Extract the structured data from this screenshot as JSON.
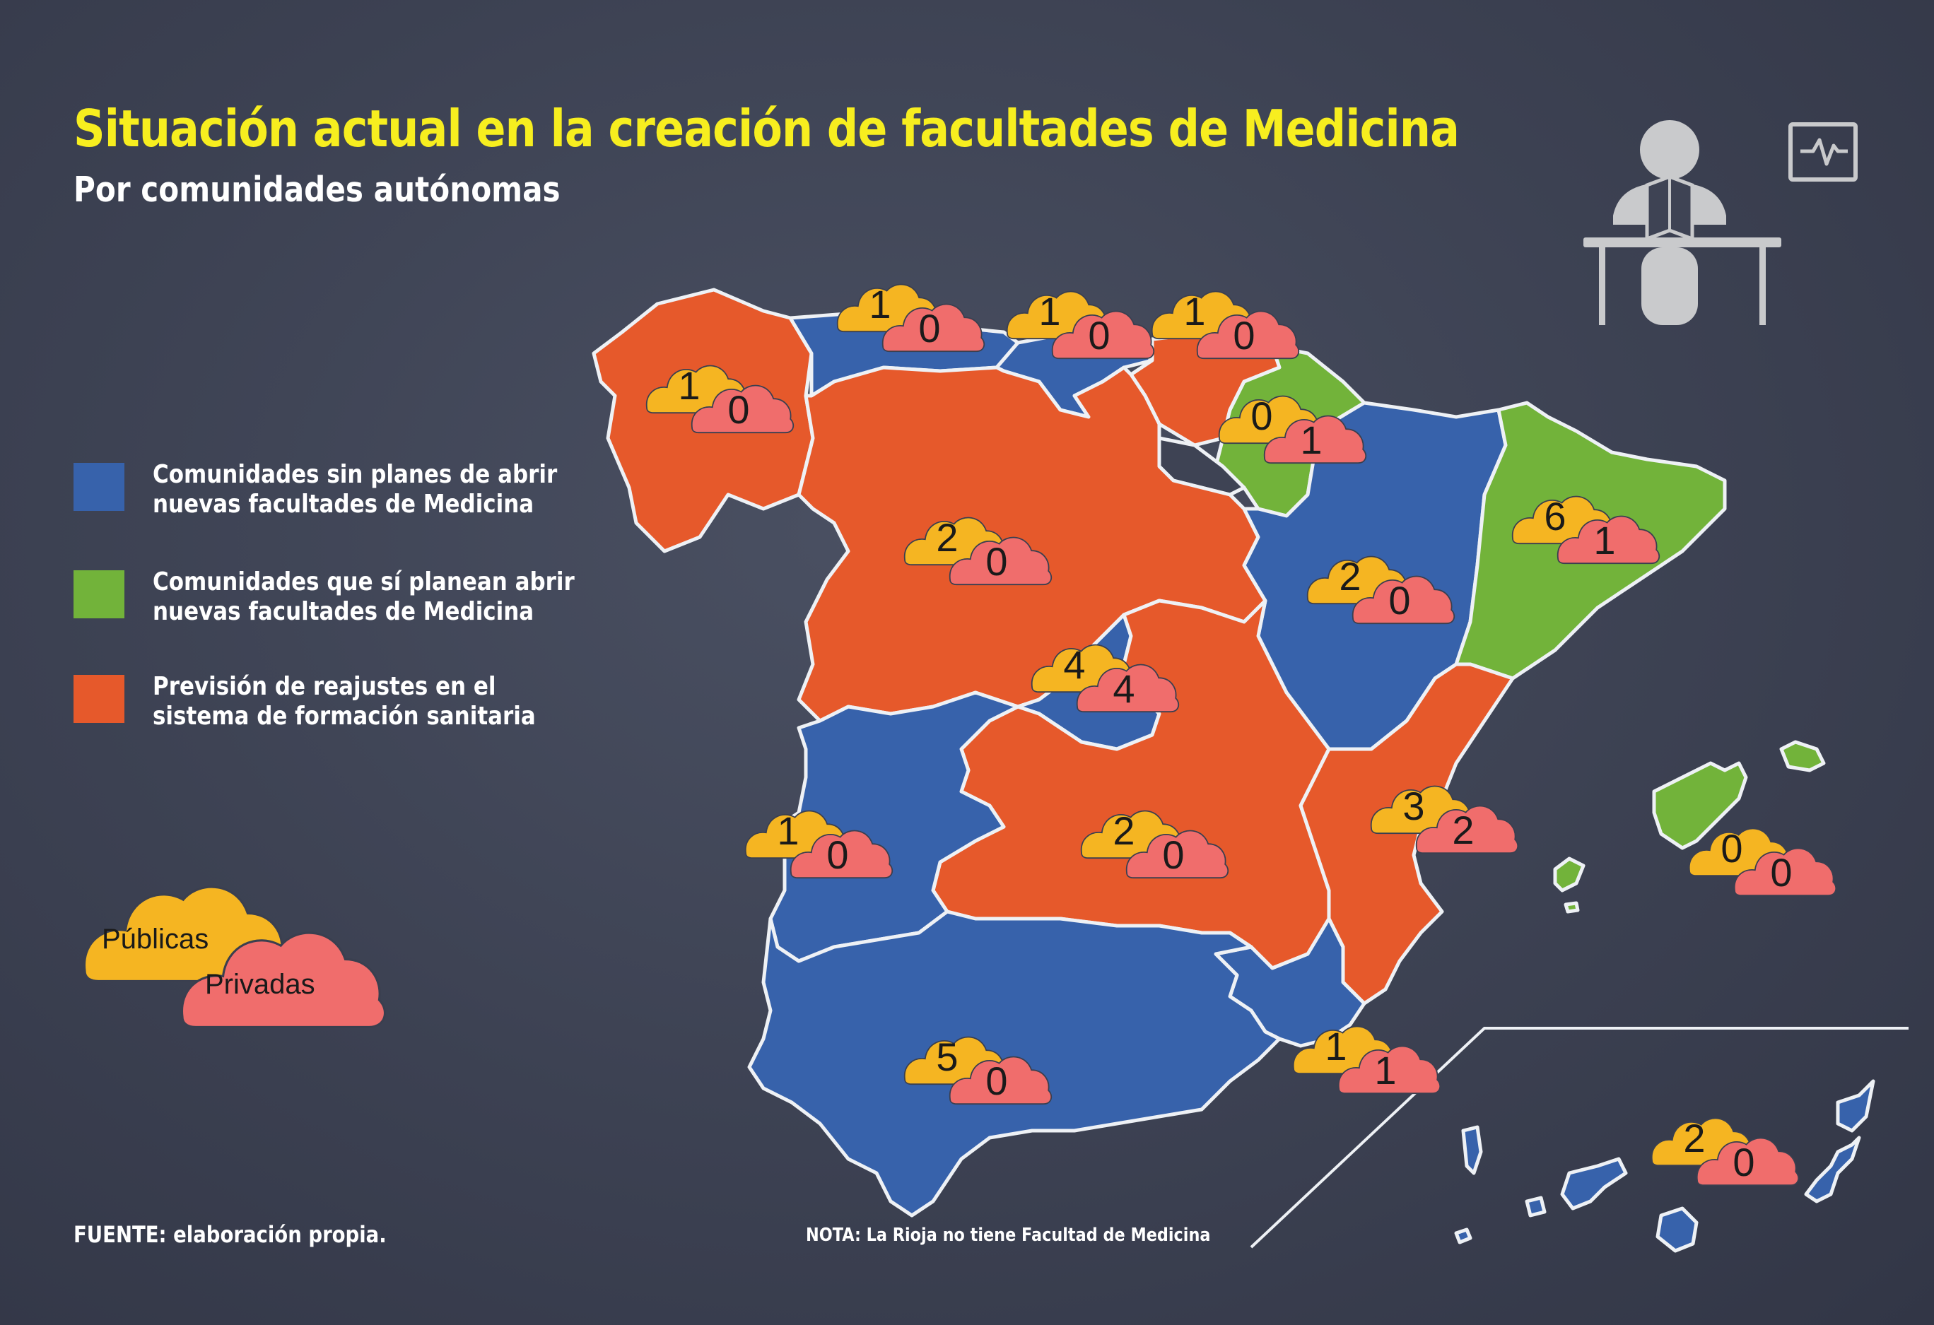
{
  "title": "Situación actual en la creación de facultades de Medicina",
  "subtitle": "Por comunidades autónomas",
  "colors": {
    "blue": "#3762ab",
    "green": "#72b33a",
    "orange": "#e6592b",
    "cloud_public": "#f5b522",
    "cloud_private": "#f06d6c",
    "title": "#f7ee1f"
  },
  "legend": [
    {
      "color": "#3762ab",
      "line1": "Comunidades sin planes de abrir",
      "line2": "nuevas facultades de Medicina"
    },
    {
      "color": "#72b33a",
      "line1": "Comunidades que sí planean abrir",
      "line2": "nuevas facultades de Medicina"
    },
    {
      "color": "#e6592b",
      "line1": "Previsión de reajustes en el",
      "line2": "sistema de formación sanitaria"
    }
  ],
  "key": {
    "public": "Públicas",
    "private": "Privadas"
  },
  "regions": [
    {
      "name": "Galicia",
      "color": "orange",
      "public": "1",
      "private": "0"
    },
    {
      "name": "Asturias",
      "color": "blue",
      "public": "1",
      "private": "0"
    },
    {
      "name": "Cantabria",
      "color": "blue",
      "public": "1",
      "private": "0"
    },
    {
      "name": "País Vasco",
      "color": "orange",
      "public": "1",
      "private": "0"
    },
    {
      "name": "Navarra",
      "color": "green",
      "public": "0",
      "private": "1"
    },
    {
      "name": "Cataluña",
      "color": "green",
      "public": "6",
      "private": "1"
    },
    {
      "name": "Aragón",
      "color": "blue",
      "public": "2",
      "private": "0"
    },
    {
      "name": "Castilla y León",
      "color": "orange",
      "public": "2",
      "private": "0"
    },
    {
      "name": "Madrid",
      "color": "blue",
      "public": "4",
      "private": "4"
    },
    {
      "name": "Castilla-La Mancha",
      "color": "orange",
      "public": "2",
      "private": "0"
    },
    {
      "name": "Extremadura",
      "color": "blue",
      "public": "1",
      "private": "0"
    },
    {
      "name": "Comunidad Valenciana",
      "color": "orange",
      "public": "3",
      "private": "2"
    },
    {
      "name": "Islas Baleares",
      "color": "green",
      "public": "0",
      "private": "0"
    },
    {
      "name": "Andalucía",
      "color": "blue",
      "public": "5",
      "private": "0"
    },
    {
      "name": "Región de Murcia",
      "color": "blue",
      "public": "1",
      "private": "1"
    },
    {
      "name": "Islas Canarias",
      "color": "blue",
      "public": "2",
      "private": "0"
    },
    {
      "name": "La Rioja",
      "color": "none",
      "public": "",
      "private": ""
    }
  ],
  "source": "FUENTE: elaboración propia.",
  "note": "NOTA: La Rioja no tiene Facultad de Medicina",
  "icons": [
    "student-reading-icon",
    "monitor-heartbeat-icon"
  ]
}
